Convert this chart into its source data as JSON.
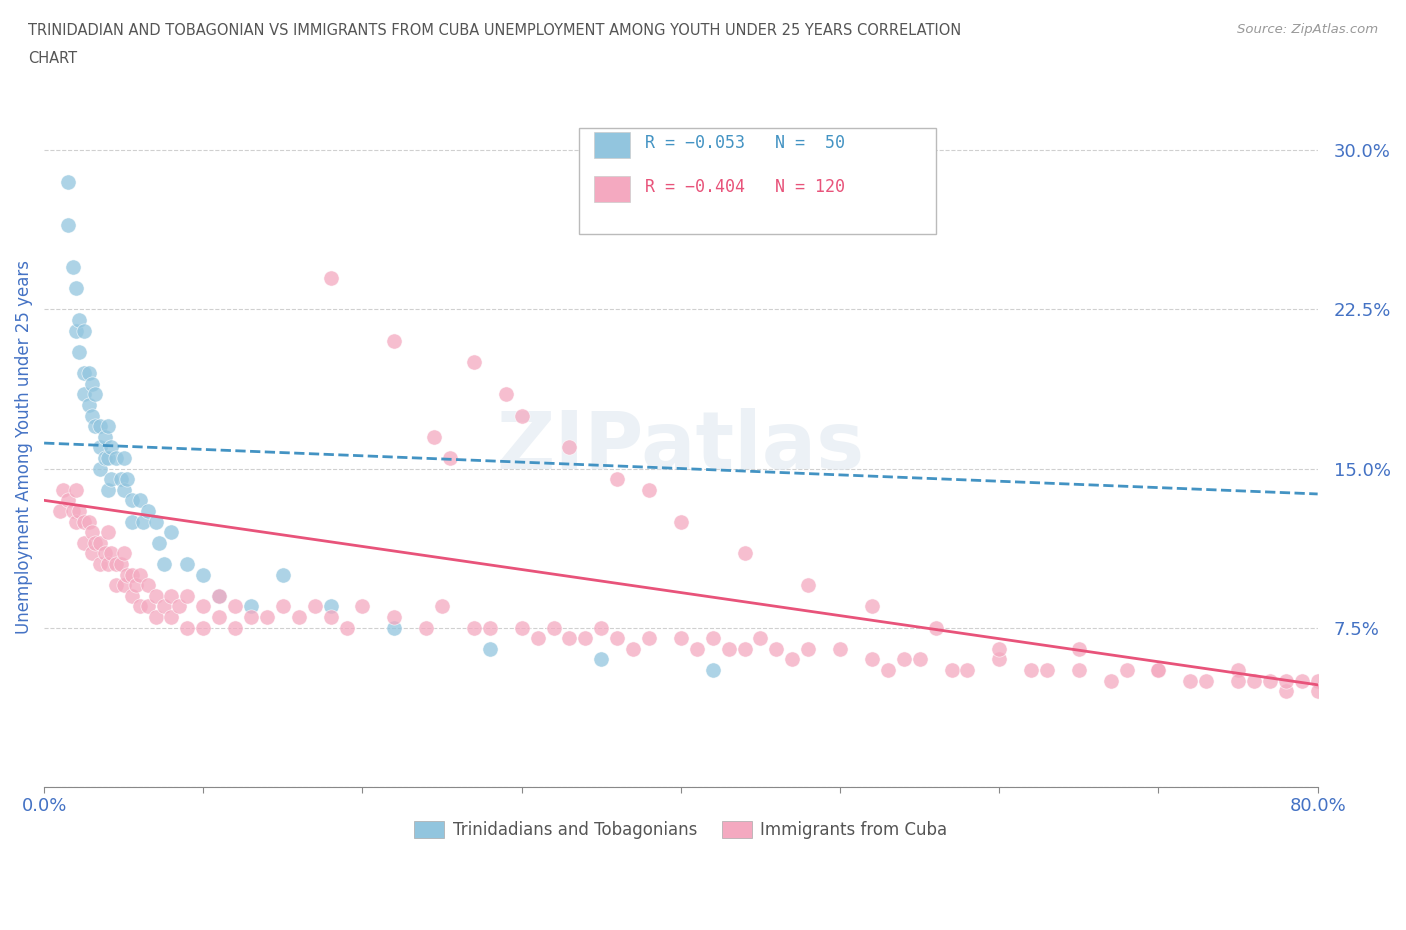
{
  "title": "TRINIDADIAN AND TOBAGONIAN VS IMMIGRANTS FROM CUBA UNEMPLOYMENT AMONG YOUTH UNDER 25 YEARS CORRELATION\nCHART",
  "source": "Source: ZipAtlas.com",
  "ylabel": "Unemployment Among Youth under 25 years",
  "yticks": [
    0.0,
    0.075,
    0.15,
    0.225,
    0.3
  ],
  "ytick_labels": [
    "",
    "7.5%",
    "15.0%",
    "22.5%",
    "30.0%"
  ],
  "xlim": [
    0.0,
    0.8
  ],
  "ylim": [
    0.0,
    0.32
  ],
  "series": [
    {
      "name": "Trinidadians and Tobagonians",
      "R": "-0.053",
      "N": "50",
      "color": "#92c5de",
      "trend_color": "#4393c3",
      "trend_style": "--",
      "trend_x0": 0.0,
      "trend_y0": 0.162,
      "trend_x1": 0.8,
      "trend_y1": 0.138,
      "x": [
        0.015,
        0.015,
        0.018,
        0.02,
        0.02,
        0.022,
        0.022,
        0.025,
        0.025,
        0.025,
        0.028,
        0.028,
        0.03,
        0.03,
        0.032,
        0.032,
        0.035,
        0.035,
        0.035,
        0.038,
        0.038,
        0.04,
        0.04,
        0.04,
        0.042,
        0.042,
        0.045,
        0.048,
        0.05,
        0.05,
        0.052,
        0.055,
        0.055,
        0.06,
        0.062,
        0.065,
        0.07,
        0.072,
        0.075,
        0.08,
        0.09,
        0.1,
        0.11,
        0.13,
        0.15,
        0.18,
        0.22,
        0.28,
        0.35,
        0.42
      ],
      "y": [
        0.285,
        0.265,
        0.245,
        0.235,
        0.215,
        0.22,
        0.205,
        0.215,
        0.195,
        0.185,
        0.195,
        0.18,
        0.19,
        0.175,
        0.185,
        0.17,
        0.17,
        0.16,
        0.15,
        0.165,
        0.155,
        0.17,
        0.155,
        0.14,
        0.16,
        0.145,
        0.155,
        0.145,
        0.155,
        0.14,
        0.145,
        0.135,
        0.125,
        0.135,
        0.125,
        0.13,
        0.125,
        0.115,
        0.105,
        0.12,
        0.105,
        0.1,
        0.09,
        0.085,
        0.1,
        0.085,
        0.075,
        0.065,
        0.06,
        0.055
      ]
    },
    {
      "name": "Immigrants from Cuba",
      "R": "-0.404",
      "N": "120",
      "color": "#f4a9c0",
      "trend_color": "#e8537a",
      "trend_style": "-",
      "trend_x0": 0.0,
      "trend_y0": 0.135,
      "trend_x1": 0.8,
      "trend_y1": 0.048,
      "x": [
        0.01,
        0.012,
        0.015,
        0.018,
        0.02,
        0.02,
        0.022,
        0.025,
        0.025,
        0.028,
        0.03,
        0.03,
        0.032,
        0.035,
        0.035,
        0.038,
        0.04,
        0.04,
        0.042,
        0.045,
        0.045,
        0.048,
        0.05,
        0.05,
        0.052,
        0.055,
        0.055,
        0.058,
        0.06,
        0.06,
        0.065,
        0.065,
        0.07,
        0.07,
        0.075,
        0.08,
        0.08,
        0.085,
        0.09,
        0.09,
        0.1,
        0.1,
        0.11,
        0.11,
        0.12,
        0.12,
        0.13,
        0.14,
        0.15,
        0.16,
        0.17,
        0.18,
        0.19,
        0.2,
        0.22,
        0.24,
        0.25,
        0.27,
        0.28,
        0.3,
        0.31,
        0.32,
        0.33,
        0.34,
        0.35,
        0.36,
        0.37,
        0.38,
        0.4,
        0.41,
        0.42,
        0.43,
        0.44,
        0.45,
        0.46,
        0.47,
        0.48,
        0.5,
        0.52,
        0.53,
        0.54,
        0.55,
        0.57,
        0.58,
        0.6,
        0.62,
        0.63,
        0.65,
        0.67,
        0.68,
        0.7,
        0.72,
        0.73,
        0.75,
        0.76,
        0.77,
        0.78,
        0.79,
        0.8,
        0.8,
        0.245,
        0.255,
        0.27,
        0.3,
        0.33,
        0.36,
        0.4,
        0.44,
        0.48,
        0.52,
        0.56,
        0.6,
        0.65,
        0.7,
        0.75,
        0.78,
        0.38,
        0.29,
        0.22,
        0.18
      ],
      "y": [
        0.13,
        0.14,
        0.135,
        0.13,
        0.14,
        0.125,
        0.13,
        0.125,
        0.115,
        0.125,
        0.12,
        0.11,
        0.115,
        0.115,
        0.105,
        0.11,
        0.12,
        0.105,
        0.11,
        0.105,
        0.095,
        0.105,
        0.11,
        0.095,
        0.1,
        0.1,
        0.09,
        0.095,
        0.1,
        0.085,
        0.095,
        0.085,
        0.09,
        0.08,
        0.085,
        0.09,
        0.08,
        0.085,
        0.09,
        0.075,
        0.085,
        0.075,
        0.09,
        0.08,
        0.085,
        0.075,
        0.08,
        0.08,
        0.085,
        0.08,
        0.085,
        0.08,
        0.075,
        0.085,
        0.08,
        0.075,
        0.085,
        0.075,
        0.075,
        0.075,
        0.07,
        0.075,
        0.07,
        0.07,
        0.075,
        0.07,
        0.065,
        0.07,
        0.07,
        0.065,
        0.07,
        0.065,
        0.065,
        0.07,
        0.065,
        0.06,
        0.065,
        0.065,
        0.06,
        0.055,
        0.06,
        0.06,
        0.055,
        0.055,
        0.06,
        0.055,
        0.055,
        0.055,
        0.05,
        0.055,
        0.055,
        0.05,
        0.05,
        0.055,
        0.05,
        0.05,
        0.045,
        0.05,
        0.05,
        0.045,
        0.165,
        0.155,
        0.2,
        0.175,
        0.16,
        0.145,
        0.125,
        0.11,
        0.095,
        0.085,
        0.075,
        0.065,
        0.065,
        0.055,
        0.05,
        0.05,
        0.14,
        0.185,
        0.21,
        0.24
      ]
    }
  ],
  "legend_items": [
    {
      "label": "R = −0.053   N =  50",
      "color": "#92c5de",
      "text_color": "#4393c3"
    },
    {
      "label": "R = −0.404   N = 120",
      "color": "#f4a9c0",
      "text_color": "#e8537a"
    }
  ],
  "bottom_legend": [
    {
      "label": "Trinidadians and Tobagonians",
      "color": "#92c5de"
    },
    {
      "label": "Immigrants from Cuba",
      "color": "#f4a9c0"
    }
  ],
  "watermark": "ZIPatlas",
  "background_color": "#ffffff",
  "grid_color": "#d0d0d0",
  "title_color": "#555555",
  "axis_label_color": "#4472c4",
  "tick_color": "#4472c4"
}
